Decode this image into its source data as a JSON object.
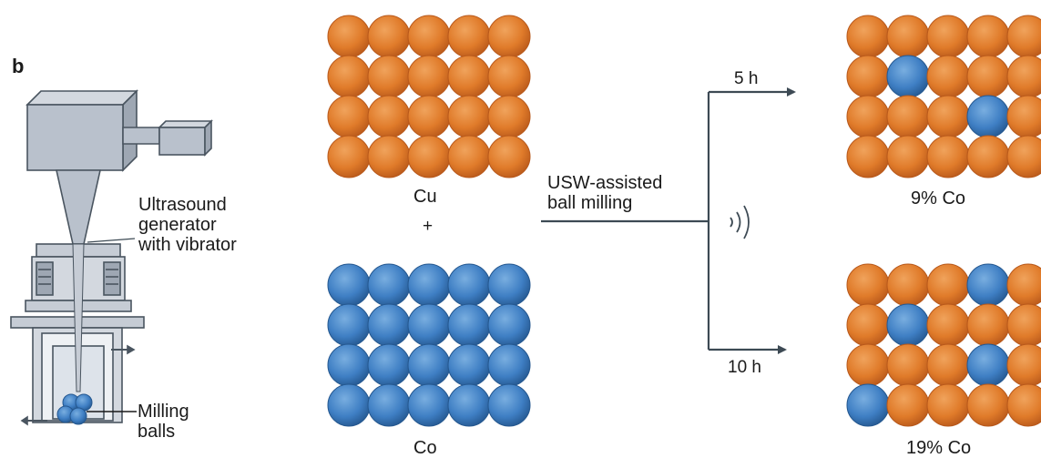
{
  "figure": {
    "panel_label": "b",
    "apparatus": {
      "generator_label_lines": [
        "Ultrasound",
        "generator",
        "with vibrator"
      ],
      "balls_label_lines": [
        "Milling",
        "balls"
      ]
    },
    "reactants": {
      "top_label": "Cu",
      "plus": "+",
      "bottom_label": "Co"
    },
    "process": {
      "label_lines": [
        "USW-assisted",
        "ball milling"
      ],
      "time_upper": "5 h",
      "time_lower": "10 h"
    },
    "products": {
      "upper_label": "9% Co",
      "lower_label": "19% Co"
    },
    "grids": {
      "cu": {
        "rows": 4,
        "cols": 5,
        "co_positions": []
      },
      "co": {
        "rows": 4,
        "cols": 5,
        "co_positions": [
          [
            0,
            0
          ],
          [
            0,
            1
          ],
          [
            0,
            2
          ],
          [
            0,
            3
          ],
          [
            0,
            4
          ],
          [
            1,
            0
          ],
          [
            1,
            1
          ],
          [
            1,
            2
          ],
          [
            1,
            3
          ],
          [
            1,
            4
          ],
          [
            2,
            0
          ],
          [
            2,
            1
          ],
          [
            2,
            2
          ],
          [
            2,
            3
          ],
          [
            2,
            4
          ],
          [
            3,
            0
          ],
          [
            3,
            1
          ],
          [
            3,
            2
          ],
          [
            3,
            3
          ],
          [
            3,
            4
          ]
        ]
      },
      "product_5h": {
        "rows": 4,
        "cols": 5,
        "co_positions": [
          [
            1,
            1
          ],
          [
            2,
            3
          ]
        ]
      },
      "product_10h": {
        "rows": 4,
        "cols": 5,
        "co_positions": [
          [
            0,
            3
          ],
          [
            1,
            1
          ],
          [
            2,
            3
          ],
          [
            3,
            0
          ]
        ]
      }
    },
    "colors": {
      "copper": "#e07b2a",
      "copper_dark": "#b8581a",
      "cobalt": "#3f7fc4",
      "cobalt_dark": "#24578f",
      "line": "#3d4a54",
      "apparatus_fill": "#b9c1cc",
      "apparatus_stroke": "#4a5560"
    }
  }
}
